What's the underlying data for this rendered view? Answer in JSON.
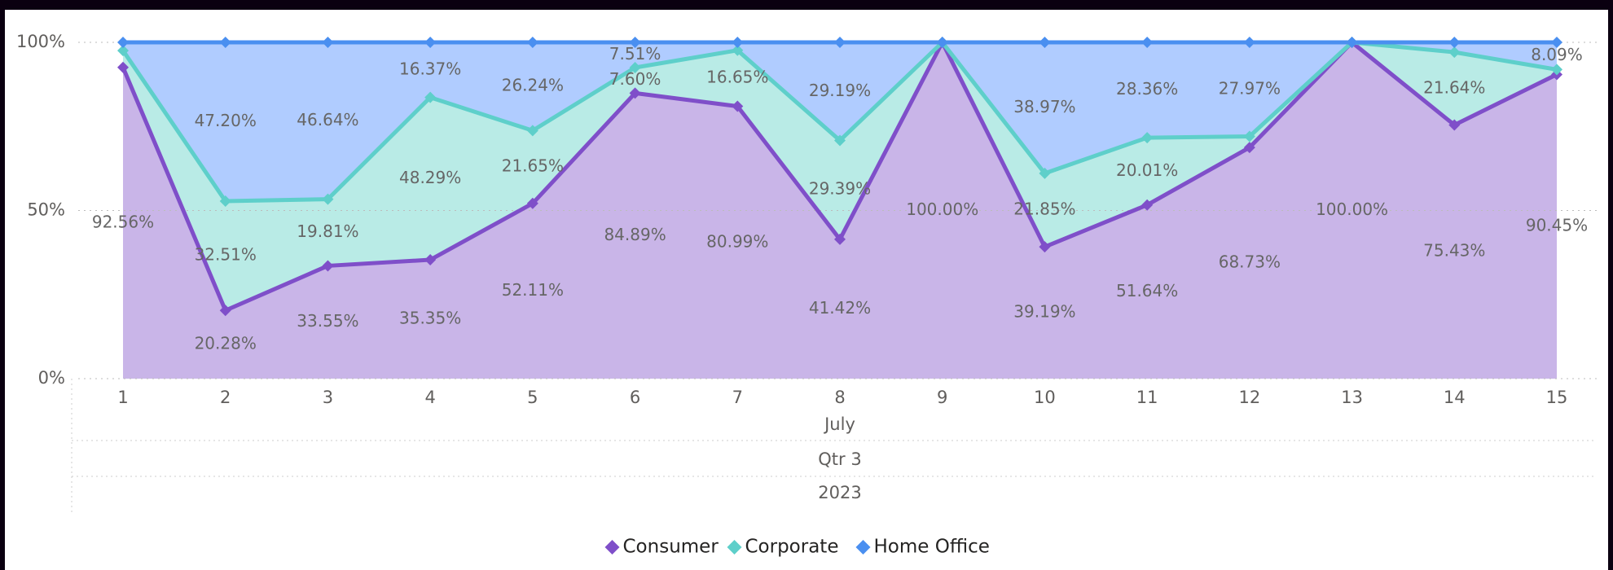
{
  "chart_data": {
    "type": "stacked_area_100",
    "categories": [
      "1",
      "2",
      "3",
      "4",
      "5",
      "6",
      "7",
      "8",
      "9",
      "10",
      "11",
      "12",
      "13",
      "14",
      "15"
    ],
    "x_levels": [
      "July",
      "Qtr 3",
      "2023"
    ],
    "series": [
      {
        "name": "Consumer",
        "color": "#7f4fc9",
        "fill": "#c9b5e8",
        "values": [
          92.56,
          20.28,
          33.55,
          35.35,
          52.11,
          84.89,
          80.99,
          41.42,
          100,
          39.19,
          51.64,
          68.73,
          100,
          75.43,
          90.45
        ],
        "value_labels": [
          "92.56%",
          "20.28%",
          "33.55%",
          "35.35%",
          "52.11%",
          "84.89%",
          "80.99%",
          "41.42%",
          "100.00%",
          "39.19%",
          "51.64%",
          "68.73%",
          "100.00%",
          "75.43%",
          "90.45%"
        ]
      },
      {
        "name": "Corporate",
        "color": "#5ecfca",
        "fill": "#b9ebe6",
        "values": [
          5.0,
          32.51,
          19.81,
          48.29,
          21.65,
          7.6,
          16.65,
          29.39,
          0,
          21.85,
          20.01,
          3.3,
          0,
          21.64,
          1.46
        ],
        "value_labels": [
          null,
          "32.51%",
          "19.81%",
          "48.29%",
          "21.65%",
          "7.60%",
          "16.65%",
          "29.39%",
          null,
          "21.85%",
          "20.01%",
          null,
          null,
          "21.64%",
          null
        ]
      },
      {
        "name": "Home Office",
        "color": "#4a8ff0",
        "fill": "#b0ccff",
        "values": [
          2.44,
          47.2,
          46.64,
          16.37,
          26.24,
          7.51,
          2.36,
          29.19,
          0,
          38.97,
          28.36,
          27.97,
          0,
          2.93,
          8.09
        ],
        "value_labels": [
          null,
          "47.20%",
          "46.64%",
          "16.37%",
          "26.24%",
          "7.51%",
          null,
          "29.19%",
          null,
          "38.97%",
          "28.36%",
          "27.97%",
          null,
          null,
          "8.09%"
        ]
      }
    ],
    "ylim": [
      0,
      100
    ],
    "yticks": [
      {
        "value": 0,
        "label": "0%"
      },
      {
        "value": 50,
        "label": "50%"
      },
      {
        "value": 100,
        "label": "100%"
      }
    ],
    "grid": true,
    "legend": "bottom"
  }
}
